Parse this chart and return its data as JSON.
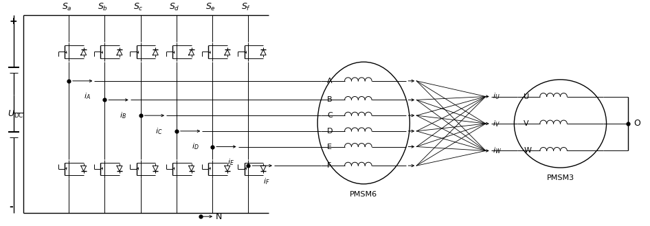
{
  "bg_color": "#ffffff",
  "fig_width": 9.46,
  "fig_height": 3.29,
  "dpi": 100,
  "switch_labels": [
    "a",
    "b",
    "c",
    "d",
    "e",
    "f"
  ],
  "coil_labels_6": [
    "A",
    "B",
    "C",
    "D",
    "E",
    "F"
  ],
  "coil_labels_3": [
    "U",
    "V",
    "W"
  ],
  "current_6": [
    "A",
    "B",
    "C",
    "D",
    "E",
    "F"
  ],
  "current_3": [
    "U",
    "V",
    "W"
  ],
  "pmsm6_label": "PMSM6",
  "pmsm3_label": "PMSM3",
  "udc_label": "U_{DC}",
  "plus_label": "+",
  "minus_label": "-",
  "N_label": "N",
  "O_label": "O",
  "lw": 1.0,
  "lw_thin": 0.7
}
